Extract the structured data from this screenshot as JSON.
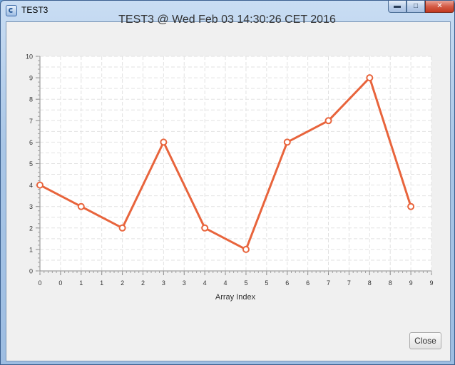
{
  "window": {
    "title": "TEST3",
    "icon": "java-app-icon",
    "controls": {
      "minimize": "minimize-icon",
      "maximize": "maximize-icon",
      "close": "close-icon"
    }
  },
  "chart_data": {
    "type": "line",
    "title": "TEST3 @ Wed Feb 03 14:30:26 CET 2016",
    "xlabel": "Array Index",
    "ylabel": "",
    "x": [
      0,
      1,
      2,
      3,
      4,
      5,
      6,
      7,
      8,
      9
    ],
    "series": [
      {
        "values": [
          4,
          3,
          2,
          6,
          2,
          1,
          6,
          7,
          9,
          3
        ],
        "color": "#e8643c"
      }
    ],
    "xlim": [
      0,
      9.5
    ],
    "ylim": [
      0,
      10
    ],
    "x_tick_labels": [
      "0",
      "0",
      "1",
      "1",
      "2",
      "2",
      "3",
      "3",
      "4",
      "4",
      "5",
      "5",
      "6",
      "6",
      "7",
      "7",
      "8",
      "8",
      "9",
      "9"
    ],
    "y_tick_labels": [
      "0",
      "1",
      "2",
      "3",
      "4",
      "5",
      "6",
      "7",
      "8",
      "9",
      "10"
    ],
    "grid": true,
    "legend": "none"
  },
  "footer": {
    "close_label": "Close"
  }
}
